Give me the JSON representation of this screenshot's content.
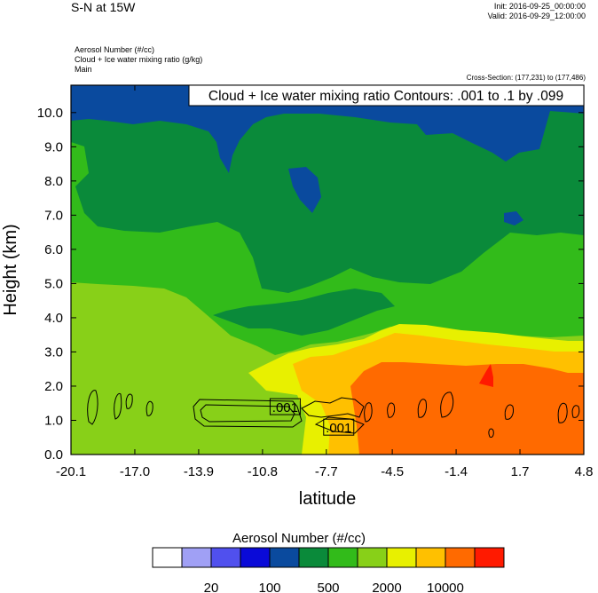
{
  "header": {
    "title": "S-N at 15W",
    "init": "Init: 2016-09-25_00:00:00",
    "valid": "Valid: 2016-09-29_12:00:00",
    "fields": [
      "Aerosol Number   (#/cc)",
      "Cloud + Ice water mixing ratio   (g/kg)",
      "Main"
    ],
    "cross_section": "Cross-Section: (177,231) to (177,486)"
  },
  "chart_data": {
    "type": "heatmap",
    "xlabel": "latitude",
    "ylabel": "Height (km)",
    "xlim": [
      -20.1,
      4.8
    ],
    "ylim": [
      0.0,
      10.8
    ],
    "x_ticks": [
      "-20.1",
      "-17.0",
      "-13.9",
      "-10.8",
      "-7.7",
      "-4.5",
      "-1.4",
      "1.7",
      "4.8"
    ],
    "y_ticks": [
      "0.0",
      "1.0",
      "2.0",
      "3.0",
      "4.0",
      "5.0",
      "6.0",
      "7.0",
      "8.0",
      "9.0",
      "10.0"
    ],
    "contour_info": "Cloud + Ice water mixing ratio Contours: .001 to .1 by .099",
    "contour_labels": [
      ".001",
      ".001"
    ],
    "contour_label_positions": [
      [
        -9.7,
        1.4
      ],
      [
        -7.1,
        0.8
      ]
    ],
    "colorbar": {
      "title": "Aerosol Number  (#/cc)",
      "colors": [
        "#ffffff",
        "#a0a0f5",
        "#5050ee",
        "#0a0ad8",
        "#0a4a9e",
        "#0a8a3a",
        "#32bb1a",
        "#88d018",
        "#e8f000",
        "#ffc000",
        "#ff6a00",
        "#ff1a00"
      ],
      "tick_labels": [
        "20",
        "100",
        "500",
        "2000",
        "10000"
      ]
    },
    "field_regions": [
      {
        "level": "#0a4a9e",
        "desc": "upper-level blue band 8.5-10.8 km"
      },
      {
        "level": "#0a8a3a",
        "desc": "mid troposphere 3.5-9 km"
      },
      {
        "level": "#32bb1a",
        "desc": "lower-mid layer"
      },
      {
        "level": "#88d018",
        "desc": "boundary layer south"
      },
      {
        "level": "#e8f000",
        "desc": "dust onset"
      },
      {
        "level": "#ffc000",
        "desc": "dust layer 1.5-3.5 km north"
      },
      {
        "level": "#ff6a00",
        "desc": "dense dust near surface north"
      },
      {
        "level": "#ff1a00",
        "desc": "peak near 1.5E"
      }
    ]
  }
}
